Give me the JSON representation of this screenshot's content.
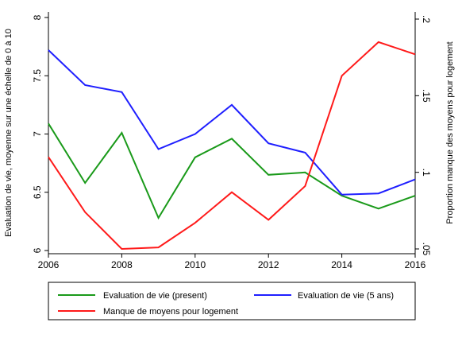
{
  "chart_data": {
    "type": "line",
    "x": [
      2006,
      2007,
      2008,
      2009,
      2010,
      2011,
      2012,
      2013,
      2014,
      2015,
      2016
    ],
    "xticks": [
      "2006",
      "2008",
      "2010",
      "2012",
      "2014",
      "2016"
    ],
    "xlim": [
      2006,
      2016
    ],
    "ylabel_left": "Evaluation de vie, moyenne sur une échelle de 0 à 10",
    "ylabel_right": "Proportion manque des moyens pour logement",
    "yticks_left": [
      "6",
      "6.5",
      "7",
      "7.5",
      "8"
    ],
    "ylim_left": [
      6,
      8
    ],
    "yticks_right": [
      ".05",
      ".1",
      ".15",
      ".2"
    ],
    "ylim_right": [
      0.05,
      0.2
    ],
    "grid": false,
    "legend_position": "bottom",
    "series": [
      {
        "name": "Evaluation de vie (present)",
        "axis": "left",
        "color": "#1a9a1a",
        "values": [
          7.09,
          6.58,
          7.01,
          6.28,
          6.8,
          6.96,
          6.65,
          6.67,
          6.47,
          6.36,
          6.47
        ]
      },
      {
        "name": "Evaluation de vie (5 ans)",
        "axis": "left",
        "color": "#1f1fff",
        "values": [
          7.72,
          7.42,
          7.36,
          6.87,
          7.0,
          7.25,
          6.92,
          6.84,
          6.48,
          6.49,
          6.61
        ]
      },
      {
        "name": "Manque de moyens pour logement",
        "axis": "right",
        "color": "#ff1a1a",
        "values": [
          0.11,
          0.074,
          0.05,
          0.051,
          0.067,
          0.087,
          0.069,
          0.091,
          0.163,
          0.185,
          0.177
        ]
      }
    ]
  }
}
